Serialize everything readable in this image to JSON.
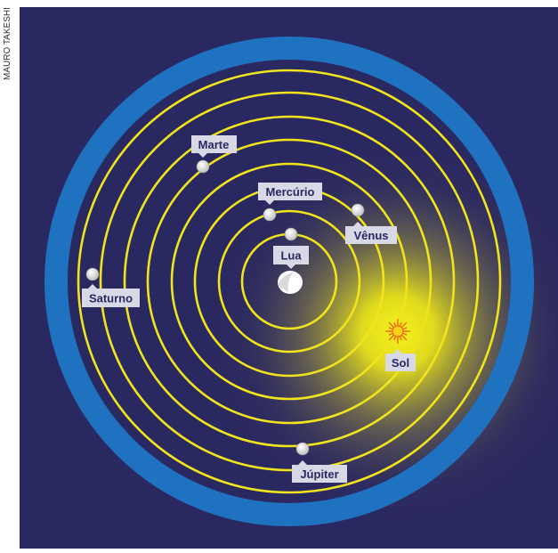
{
  "credit": "MAURO TAKESHI",
  "colors": {
    "background": "#2a2860",
    "outer_ring": "#1e73c0",
    "orbit": "#f2e41c",
    "planet": "#f1f1f1",
    "label_bg": "#d8d8e6",
    "label_text": "#2a2860",
    "sun_glow": "#f4ef1a",
    "sun": "#ffcc00"
  },
  "bodies": [
    {
      "id": "lua",
      "label": "Lua",
      "icon": "moon-icon"
    },
    {
      "id": "mercurio",
      "label": "Mercúrio",
      "icon": "planet-icon"
    },
    {
      "id": "venus",
      "label": "Vênus",
      "icon": "planet-icon"
    },
    {
      "id": "sol",
      "label": "Sol",
      "icon": "sun-icon"
    },
    {
      "id": "marte",
      "label": "Marte",
      "icon": "planet-icon"
    },
    {
      "id": "jupiter",
      "label": "Júpiter",
      "icon": "planet-icon"
    },
    {
      "id": "saturno",
      "label": "Saturno",
      "icon": "planet-icon"
    }
  ],
  "center_body": {
    "name": "Terra",
    "icon": "earth-icon"
  }
}
